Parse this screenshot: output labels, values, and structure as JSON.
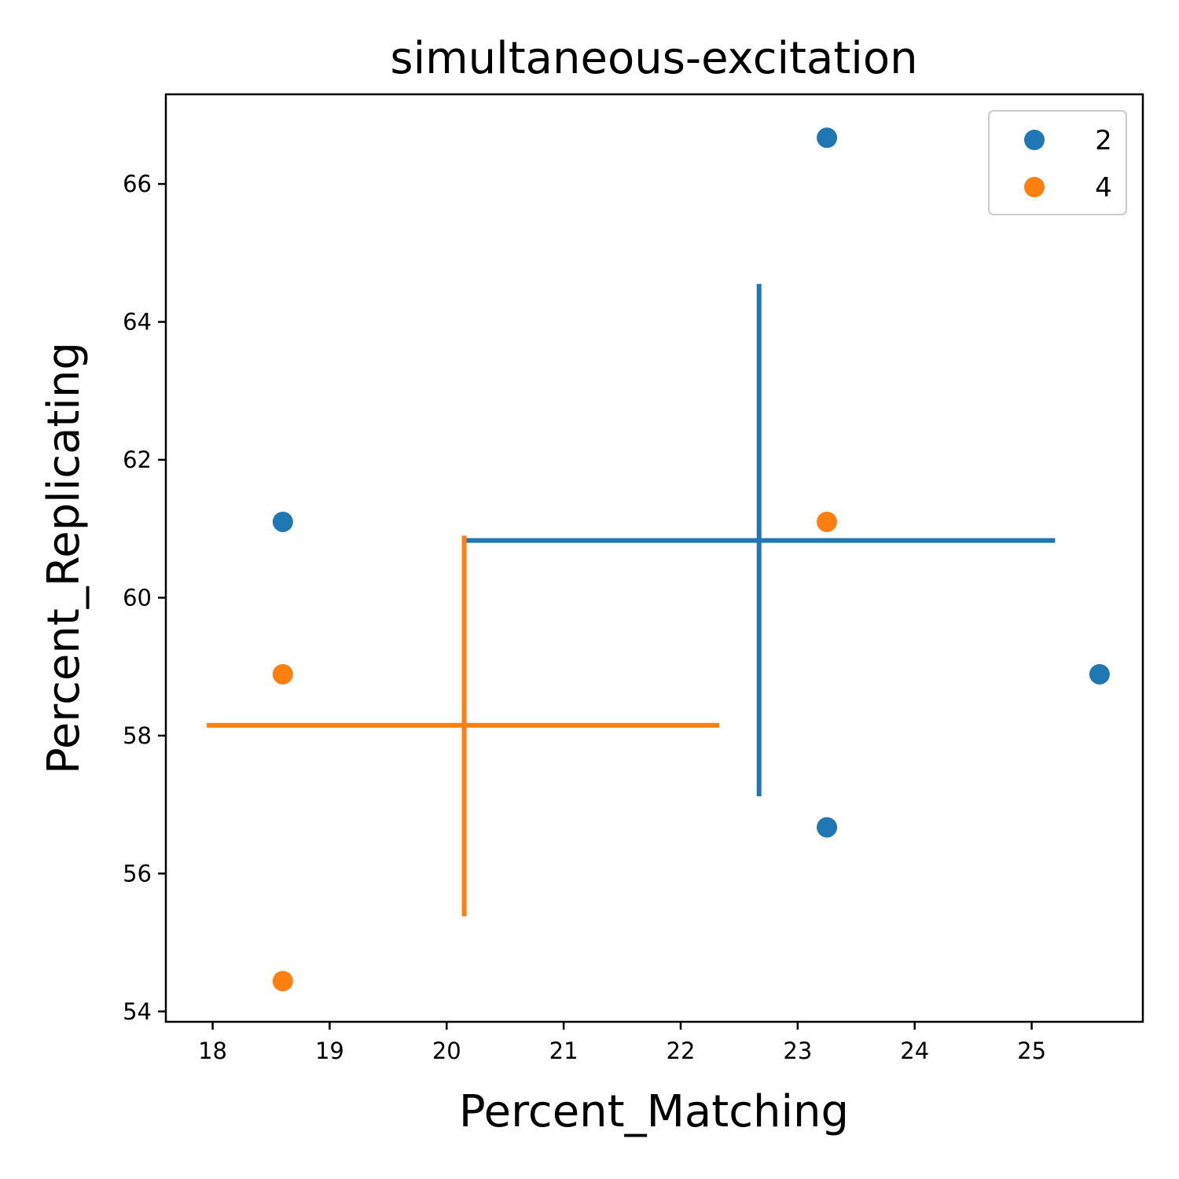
{
  "chart_data": {
    "type": "scatter",
    "title": "simultaneous-excitation",
    "xlabel": "Percent_Matching",
    "ylabel": "Percent_Replicating",
    "xlim": [
      17.6,
      25.95
    ],
    "ylim": [
      53.85,
      67.3
    ],
    "xticks": [
      18,
      19,
      20,
      21,
      22,
      23,
      24,
      25
    ],
    "yticks": [
      54,
      56,
      58,
      60,
      62,
      64,
      66
    ],
    "grid": false,
    "legend_position": "top-right",
    "series": [
      {
        "name": "2",
        "color": "#1f77b4",
        "points": [
          [
            18.6,
            61.1
          ],
          [
            23.25,
            66.67
          ],
          [
            23.25,
            56.67
          ],
          [
            25.58,
            58.89
          ]
        ],
        "mean": [
          22.67,
          60.83
        ],
        "xerr": [
          20.15,
          25.2
        ],
        "yerr": [
          57.12,
          64.55
        ]
      },
      {
        "name": "4",
        "color": "#ff7f0e",
        "points": [
          [
            18.6,
            58.89
          ],
          [
            18.6,
            54.44
          ],
          [
            23.25,
            61.1
          ]
        ],
        "mean": [
          20.15,
          58.15
        ],
        "xerr": [
          17.95,
          22.33
        ],
        "yerr": [
          55.38,
          60.9
        ]
      }
    ]
  }
}
